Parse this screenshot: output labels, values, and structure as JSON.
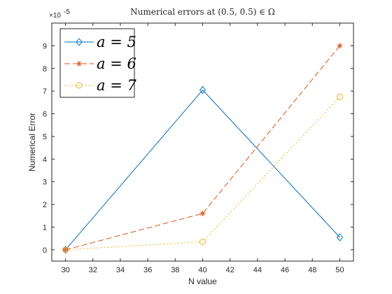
{
  "chart_data": {
    "type": "line",
    "title": "Numerical errors at (0.5, 0.5) ∈ Ω",
    "xlabel": "N value",
    "ylabel": "Numerical Error",
    "y_exponent_label": "×10",
    "y_exponent_power": "-5",
    "xlim": [
      29,
      51
    ],
    "ylim": [
      -0.5,
      10
    ],
    "x_ticks": [
      30,
      32,
      34,
      36,
      38,
      40,
      42,
      44,
      46,
      48,
      50
    ],
    "y_ticks": [
      0,
      1,
      2,
      3,
      4,
      5,
      6,
      7,
      8,
      9
    ],
    "legend_position": "top-left",
    "grid": false,
    "series": [
      {
        "name": "a = 5",
        "x": [
          30,
          40,
          50
        ],
        "values": [
          0.0,
          7.05,
          0.55
        ],
        "color": "#0072BD",
        "marker": "diamond",
        "dash": "solid"
      },
      {
        "name": "a = 6",
        "x": [
          30,
          40,
          50
        ],
        "values": [
          0.0,
          1.6,
          9.0
        ],
        "color": "#D95319",
        "marker": "asterisk",
        "dash": "dashed"
      },
      {
        "name": "a = 7",
        "x": [
          30,
          40,
          50
        ],
        "values": [
          0.0,
          0.35,
          6.75
        ],
        "color": "#EDB120",
        "marker": "circle",
        "dash": "dotted"
      }
    ]
  }
}
